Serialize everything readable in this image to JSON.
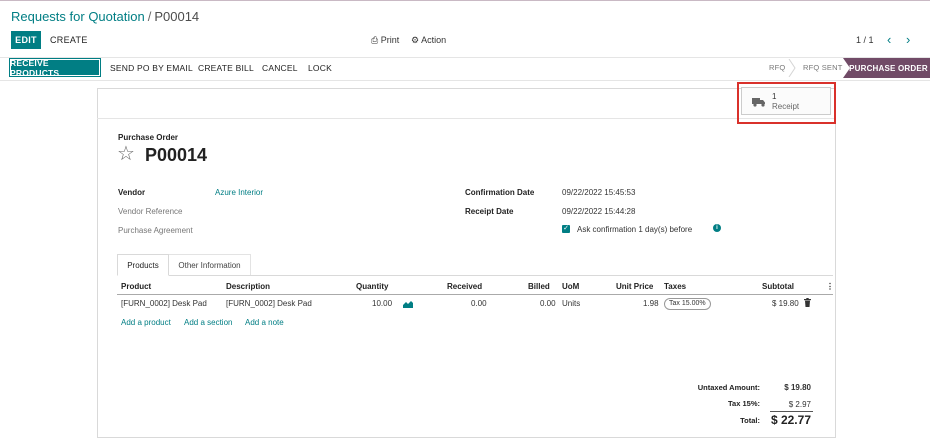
{
  "breadcrumb": {
    "parent": "Requests for Quotation",
    "separator": "/",
    "current": "P00014"
  },
  "toolbar": {
    "edit": "EDIT",
    "create": "CREATE",
    "print": "Print",
    "action": "Action"
  },
  "pager": {
    "value": "1 / 1",
    "prev": "‹",
    "next": "›"
  },
  "header_buttons": {
    "receive_products": "RECEIVE PRODUCTS",
    "send_po_by_email": "SEND PO BY EMAIL",
    "create_bill": "CREATE BILL",
    "cancel": "CANCEL",
    "lock": "LOCK"
  },
  "status_stages": {
    "rfq": "RFQ",
    "rfq_sent": "RFQ SENT",
    "purchase_order": "PURCHASE ORDER",
    "active": "PURCHASE ORDER"
  },
  "smart_button": {
    "count": "1",
    "label": "Receipt",
    "icon": "truck-icon"
  },
  "form": {
    "doc_type": "Purchase Order",
    "name": "P00014",
    "vendor_label": "Vendor",
    "vendor": "Azure Interior",
    "vendor_reference_label": "Vendor Reference",
    "purchase_agreement_label": "Purchase Agreement",
    "confirmation_date_label": "Confirmation Date",
    "confirmation_date": "09/22/2022 15:45:53",
    "receipt_date_label": "Receipt Date",
    "receipt_date": "09/22/2022 15:44:28",
    "ask_confirmation": "Ask confirmation 1 day(s) before"
  },
  "tabs": {
    "products": "Products",
    "other_information": "Other Information"
  },
  "lines_table": {
    "headers": {
      "product": "Product",
      "description": "Description",
      "quantity": "Quantity",
      "received": "Received",
      "billed": "Billed",
      "uom": "UoM",
      "unit_price": "Unit Price",
      "taxes": "Taxes",
      "subtotal": "Subtotal"
    },
    "rows": [
      {
        "product": "[FURN_0002] Desk Pad",
        "description": "[FURN_0002] Desk Pad",
        "quantity": "10.00",
        "received": "0.00",
        "billed": "0.00",
        "uom": "Units",
        "unit_price": "1.98",
        "taxes": "Tax 15.00%",
        "subtotal": "$ 19.80"
      }
    ],
    "add_product": "Add a product",
    "add_section": "Add a section",
    "add_note": "Add a note"
  },
  "totals": {
    "untaxed_label": "Untaxed Amount:",
    "untaxed": "$ 19.80",
    "tax_label": "Tax 15%:",
    "tax": "$ 2.97",
    "total_label": "Total:",
    "total": "$ 22.77"
  },
  "colors": {
    "primary": "#017e84",
    "brand": "#714b67",
    "highlight": "#d9312b"
  }
}
